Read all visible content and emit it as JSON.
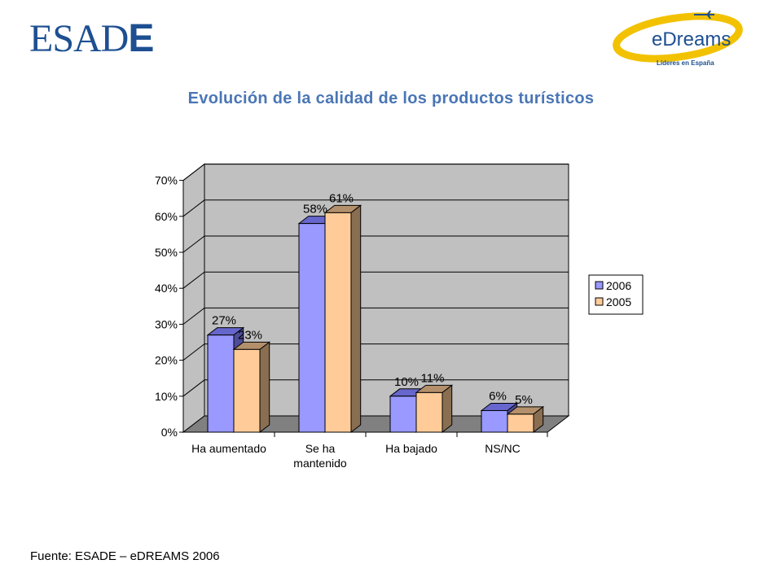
{
  "header": {
    "esade_logo": "ESADE",
    "edreams_logo": "eDreams",
    "edreams_tagline": "Líderes en España"
  },
  "title": "Evolución de la calidad de los productos turísticos",
  "source": "Fuente: ESADE – eDREAMS 2006",
  "chart_data": {
    "type": "bar",
    "style": "3d clustered column",
    "categories": [
      [
        "Ha aumentado"
      ],
      [
        "Se ha",
        "mantenido"
      ],
      [
        "Ha bajado"
      ],
      [
        "NS/NC"
      ]
    ],
    "series": [
      {
        "name": "2006",
        "values": [
          27,
          58,
          10,
          6
        ],
        "labels": [
          "27%",
          "58%",
          "10%",
          "6%"
        ],
        "color": "#9999ff",
        "top_color": "#6666cc",
        "side_color": "#4d4d99"
      },
      {
        "name": "2005",
        "values": [
          23,
          61,
          11,
          5
        ],
        "labels": [
          "23%",
          "61%",
          "11%",
          "5%"
        ],
        "color": "#ffcc99",
        "top_color": "#b3906b",
        "side_color": "#8a6e52"
      }
    ],
    "ylim": [
      0,
      70
    ],
    "yticks": [
      "0%",
      "10%",
      "20%",
      "30%",
      "40%",
      "50%",
      "60%",
      "70%"
    ],
    "grid": true,
    "legend_position": "right",
    "wall_color": "#c0c0c0",
    "floor_color": "#808080"
  }
}
